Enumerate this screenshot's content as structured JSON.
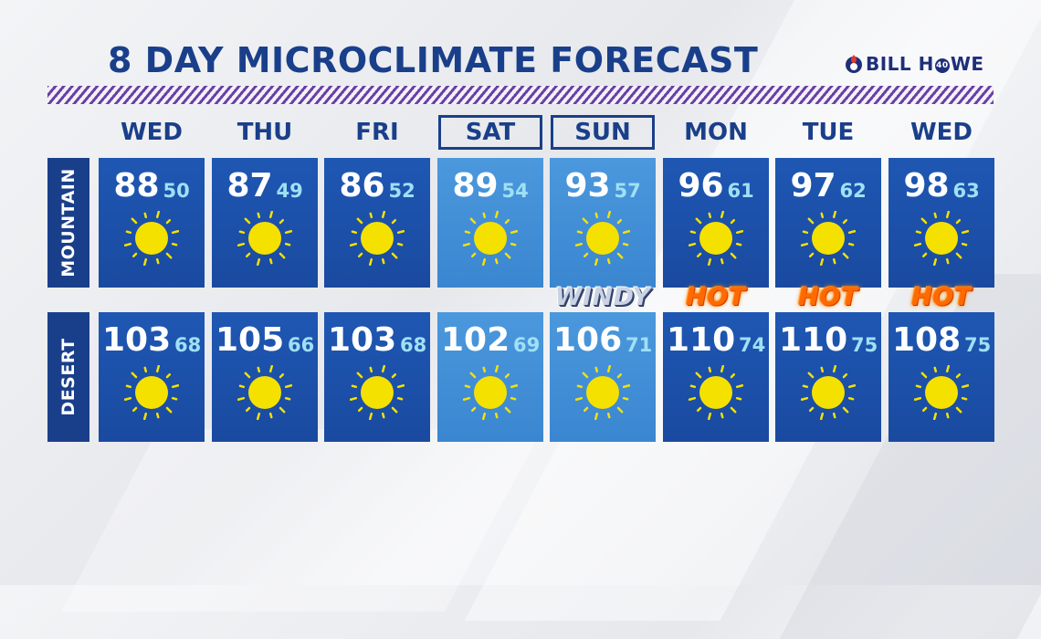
{
  "title": "8 DAY MICROCLIMATE FORECAST",
  "logo": {
    "pre": "BILL H",
    "forty": "40",
    "post": "WE"
  },
  "days": [
    {
      "label": "WED",
      "weekend": false
    },
    {
      "label": "THU",
      "weekend": false
    },
    {
      "label": "FRI",
      "weekend": false
    },
    {
      "label": "SAT",
      "weekend": true
    },
    {
      "label": "SUN",
      "weekend": true
    },
    {
      "label": "MON",
      "weekend": false
    },
    {
      "label": "TUE",
      "weekend": false
    },
    {
      "label": "WED",
      "weekend": false
    }
  ],
  "rows": [
    {
      "label": "MOUNTAIN",
      "cells": [
        {
          "hi": "88",
          "lo": "50",
          "icon": "sun-icon"
        },
        {
          "hi": "87",
          "lo": "49",
          "icon": "sun-icon"
        },
        {
          "hi": "86",
          "lo": "52",
          "icon": "sun-icon"
        },
        {
          "hi": "89",
          "lo": "54",
          "icon": "sun-icon"
        },
        {
          "hi": "93",
          "lo": "57",
          "icon": "sun-icon"
        },
        {
          "hi": "96",
          "lo": "61",
          "icon": "sun-icon"
        },
        {
          "hi": "97",
          "lo": "62",
          "icon": "sun-icon"
        },
        {
          "hi": "98",
          "lo": "63",
          "icon": "sun-icon"
        }
      ]
    },
    {
      "label": "DESERT",
      "cells": [
        {
          "hi": "103",
          "lo": "68",
          "icon": "sun-icon"
        },
        {
          "hi": "105",
          "lo": "66",
          "icon": "sun-icon"
        },
        {
          "hi": "103",
          "lo": "68",
          "icon": "sun-icon"
        },
        {
          "hi": "102",
          "lo": "69",
          "icon": "sun-icon"
        },
        {
          "hi": "106",
          "lo": "71",
          "icon": "sun-icon"
        },
        {
          "hi": "110",
          "lo": "74",
          "icon": "sun-icon"
        },
        {
          "hi": "110",
          "lo": "75",
          "icon": "sun-icon"
        },
        {
          "hi": "108",
          "lo": "75",
          "icon": "sun-icon"
        }
      ]
    }
  ],
  "tags": [
    {
      "text": "WINDY",
      "style": "windy"
    },
    {
      "text": "HOT",
      "style": "hot"
    },
    {
      "text": "HOT",
      "style": "hot"
    },
    {
      "text": "HOT",
      "style": "hot"
    }
  ],
  "colors": {
    "navy": "#1a3f8a",
    "cell_blue": "#1e57b3",
    "weekend_blue": "#4b98dd",
    "low_temp": "#9fe0f5",
    "sun": "#f5e100",
    "stripe_purple": "#6a3fa8",
    "hot": "#ff6a00"
  }
}
